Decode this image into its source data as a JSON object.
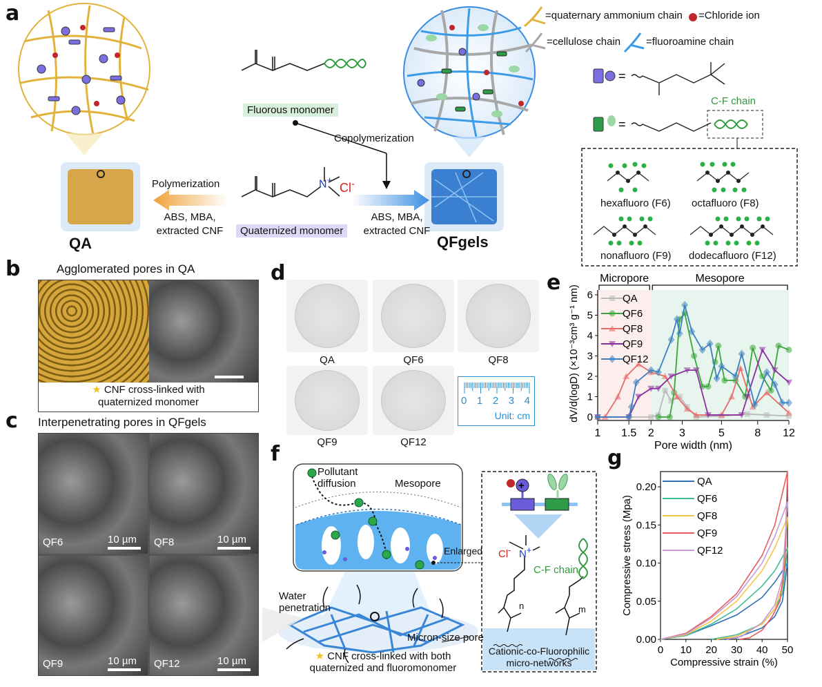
{
  "panels": {
    "a": "a",
    "b": "b",
    "c": "c",
    "d": "d",
    "e": "e",
    "f": "f",
    "g": "g"
  },
  "a": {
    "qa_label": "QA",
    "qfgels_label": "QFgels",
    "fluorous_monomer": "Fluorous monomer",
    "quaternized_monomer": "Quaternized monomer",
    "copolymerization": "Copolymerization",
    "polymerization": "Polymerization",
    "reagents_left": [
      "ABS, MBA,",
      "extracted CNF"
    ],
    "reagents_right": [
      "ABS, MBA,",
      "extracted CNF"
    ],
    "chloride_symbol": "Cl",
    "chloride_charge": "-",
    "nitrogen": "N",
    "nitrogen_charge": "+",
    "legend": {
      "quaternary": "=quaternary ammonium chain",
      "chloride": "=Chloride ion",
      "cellulose": "=cellulose chain",
      "fluoroamine": "=fluoroamine chain"
    },
    "cf_chain": "C-F chain",
    "fluoro": [
      "hexafluoro (F6)",
      "octafluoro (F8)",
      "nonafluoro (F9)",
      "dodecafluoro (F12)"
    ]
  },
  "b": {
    "title": "Agglomerated pores in QA",
    "caption": [
      "CNF cross-linked with",
      "quaternized monomer"
    ]
  },
  "c": {
    "title": "Interpenetrating pores in QFgels",
    "labels": [
      "QF6",
      "QF8",
      "QF9",
      "QF12"
    ],
    "scale": "10 µm"
  },
  "d": {
    "samples": [
      "QA",
      "QF6",
      "QF8",
      "QF9",
      "QF12"
    ],
    "ruler_ticks": [
      "0",
      "1",
      "2",
      "3",
      "4"
    ],
    "ruler_unit": "Unit: cm"
  },
  "f": {
    "pollutant": [
      "Pollutant",
      "diffusion"
    ],
    "mesopore": "Mesopore",
    "enlarged": "Enlarged",
    "water": [
      "Water",
      "penetration"
    ],
    "micron": "Micron-size pore",
    "caption": [
      "CNF cross-linked with both",
      "quaternized and fluoromonomer"
    ],
    "cl": "Cl",
    "cl_charge": "-",
    "n": "N",
    "n_charge": "+",
    "cf_chain": "C-F chain",
    "n_sub": "n",
    "m_sub": "m",
    "network": [
      "Cationic-co-Fluorophilic",
      "micro-networks"
    ]
  },
  "chart_data": [
    {
      "type": "line",
      "panel": "e",
      "xscale": "log",
      "xlim": [
        1,
        12
      ],
      "ylim": [
        0,
        6.4
      ],
      "xticks": [
        "1",
        "1.5",
        "2",
        "3",
        "5",
        "8",
        "12"
      ],
      "yticks": [
        "0",
        "1",
        "2",
        "3",
        "4",
        "5",
        "6"
      ],
      "xlabel": "Pore width (nm)",
      "ylabel": "dV/d(logD)  (×10⁻³cm³ g⁻¹ nm)",
      "regions": [
        {
          "label": "Micropore",
          "range": [
            1,
            2
          ],
          "color": "#fdeeee"
        },
        {
          "label": "Mesopore",
          "range": [
            2,
            12
          ],
          "color": "#e8f5ee"
        }
      ],
      "legend_position": "top-left",
      "series": [
        {
          "name": "QA",
          "color": "#b8b8b8",
          "marker": "square",
          "x": [
            1,
            1.5,
            2,
            2.2,
            2.4,
            2.6,
            2.9,
            3.2,
            3.6,
            5,
            7,
            9,
            12
          ],
          "y": [
            0,
            0,
            0,
            0.1,
            1.3,
            0.8,
            1.0,
            0.5,
            0,
            0.05,
            0.15,
            0.1,
            0.05
          ]
        },
        {
          "name": "QF6",
          "color": "#3aa53a",
          "marker": "circle",
          "x": [
            2.2,
            2.55,
            2.7,
            2.9,
            3.1,
            3.5,
            3.9,
            4.2,
            4.6,
            4.8,
            5.2,
            6,
            6.8,
            7.5,
            8.5,
            9.5,
            10.5,
            12
          ],
          "y": [
            0,
            0,
            1.2,
            4.8,
            5.1,
            3.0,
            1.5,
            1.5,
            2.7,
            3.5,
            1.8,
            1.8,
            1.0,
            3.4,
            2.0,
            1.3,
            3.5,
            3.3
          ]
        },
        {
          "name": "QF8",
          "color": "#e86a6a",
          "marker": "triangle-up",
          "x": [
            1,
            1.1,
            1.3,
            1.45,
            1.7,
            2,
            2.4,
            2.8,
            3.2,
            3.6,
            5,
            5.7,
            6.4,
            7.5,
            9,
            12
          ],
          "y": [
            0,
            0,
            1,
            2,
            2.6,
            2.2,
            2.0,
            1.0,
            0.4,
            0.1,
            0.1,
            1,
            2.4,
            0.5,
            1.2,
            0.2
          ]
        },
        {
          "name": "QF9",
          "color": "#8a2e9e",
          "marker": "triangle-down",
          "x": [
            1,
            1.5,
            1.7,
            2,
            2.2,
            2.6,
            3.2,
            3.6,
            4.2,
            6.5,
            7,
            8.5,
            10,
            12
          ],
          "y": [
            0,
            0,
            1,
            1.4,
            1.4,
            2.0,
            2.3,
            2.3,
            0.1,
            0.1,
            1.0,
            3.3,
            2.3,
            1.7
          ]
        },
        {
          "name": "QF12",
          "color": "#3b7fc0",
          "marker": "diamond",
          "x": [
            1,
            1.5,
            1.55,
            1.65,
            2,
            2.2,
            2.6,
            2.8,
            2.9,
            3.1,
            3.4,
            3.9,
            4.3,
            4.7,
            5,
            6,
            6.5,
            7.7,
            9,
            10,
            11,
            12
          ],
          "y": [
            0,
            0,
            0.5,
            1.7,
            2.3,
            2.2,
            3.8,
            4.8,
            4.1,
            5.5,
            4.2,
            3.3,
            3.6,
            1.9,
            2.5,
            2.0,
            3.1,
            0.6,
            2.2,
            1.6,
            0.7,
            0.7
          ]
        }
      ]
    },
    {
      "type": "line",
      "panel": "g",
      "xlim": [
        0,
        50
      ],
      "ylim": [
        0,
        0.22
      ],
      "xticks": [
        "0",
        "10",
        "20",
        "30",
        "40",
        "50"
      ],
      "yticks": [
        "0.00",
        "0.05",
        "0.10",
        "0.15",
        "0.20"
      ],
      "xlabel": "Compressive strain (%)",
      "ylabel": "Compressive stress (Mpa)",
      "legend_position": "top-left",
      "series": [
        {
          "name": "QA",
          "color": "#2f6fb5",
          "x": [
            0,
            10,
            20,
            30,
            40,
            45,
            50,
            48,
            45,
            40,
            30,
            24
          ],
          "y": [
            0,
            0.005,
            0.018,
            0.032,
            0.055,
            0.075,
            0.1,
            0.05,
            0.03,
            0.015,
            0.002,
            0
          ]
        },
        {
          "name": "QF6",
          "color": "#3dbb95",
          "x": [
            0,
            10,
            20,
            30,
            40,
            45,
            50,
            48,
            45,
            40,
            30,
            20
          ],
          "y": [
            0,
            0.005,
            0.02,
            0.04,
            0.07,
            0.09,
            0.12,
            0.06,
            0.04,
            0.02,
            0.006,
            0
          ]
        },
        {
          "name": "QF8",
          "color": "#f7c542",
          "x": [
            0,
            10,
            20,
            30,
            40,
            45,
            50,
            48,
            45,
            40,
            30,
            22
          ],
          "y": [
            0,
            0.006,
            0.024,
            0.05,
            0.09,
            0.12,
            0.16,
            0.07,
            0.04,
            0.02,
            0.004,
            0
          ]
        },
        {
          "name": "QF9",
          "color": "#e85c5c",
          "x": [
            0,
            10,
            20,
            30,
            40,
            45,
            50,
            49,
            47,
            44,
            40,
            35,
            31
          ],
          "y": [
            0,
            0.008,
            0.03,
            0.06,
            0.11,
            0.15,
            0.22,
            0.1,
            0.05,
            0.03,
            0.012,
            0.002,
            0
          ]
        },
        {
          "name": "QF12",
          "color": "#c59ad8",
          "x": [
            0,
            10,
            20,
            30,
            40,
            45,
            50,
            48,
            45,
            40,
            32,
            26
          ],
          "y": [
            0,
            0.007,
            0.028,
            0.056,
            0.1,
            0.135,
            0.18,
            0.08,
            0.045,
            0.022,
            0.004,
            0
          ]
        }
      ]
    }
  ]
}
